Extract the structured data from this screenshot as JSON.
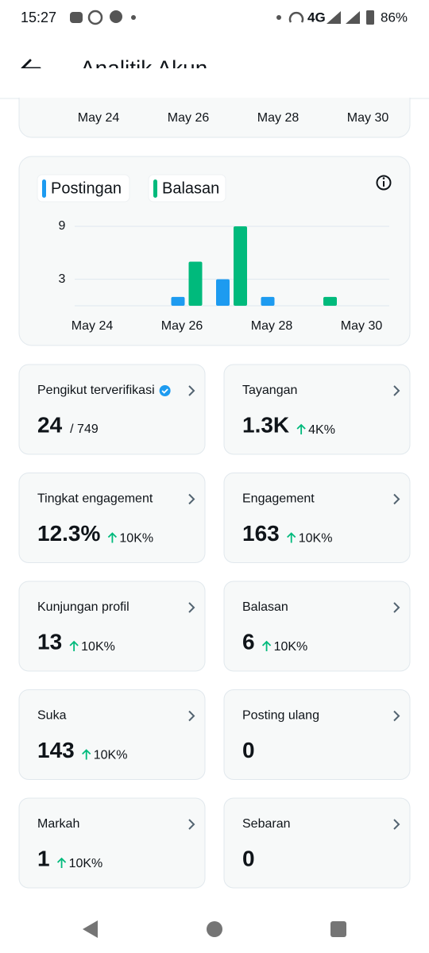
{
  "status_bar": {
    "time": "15:27",
    "network": "4G",
    "battery": "86%"
  },
  "header": {
    "title": "Analitik Akun"
  },
  "top_chart": {
    "x_labels": [
      "May 24",
      "May 26",
      "May 28",
      "May 30"
    ]
  },
  "chart": {
    "type": "bar",
    "categories": [
      "May 24",
      null,
      "May 26",
      null,
      "May 28",
      null,
      "May 30"
    ],
    "series": [
      {
        "name": "Postingan",
        "color": "#1d9bf0",
        "values": [
          0,
          0,
          1,
          3,
          1,
          0,
          0
        ]
      },
      {
        "name": "Balasan",
        "color": "#00ba7c",
        "values": [
          0,
          0,
          5,
          9,
          0,
          1,
          0
        ]
      }
    ],
    "ylim": [
      0,
      9
    ],
    "yticks": [
      3,
      9
    ],
    "grid": true
  },
  "cards": [
    {
      "label": "Pengikut terverifikasi",
      "value": "24",
      "total": "/ 749"
    },
    {
      "label": "Tayangan",
      "value": "1.3K",
      "change": "4K%"
    },
    {
      "label": "Tingkat engagement",
      "value": "12.3%",
      "change": "10K%"
    },
    {
      "label": "Engagement",
      "value": "163",
      "change": "10K%"
    },
    {
      "label": "Kunjungan profil",
      "value": "13",
      "change": "10K%"
    },
    {
      "label": "Balasan",
      "value": "6",
      "change": "10K%"
    },
    {
      "label": "Suka",
      "value": "143",
      "change": "10K%"
    },
    {
      "label": "Posting ulang",
      "value": "0"
    },
    {
      "label": "Markah",
      "value": "1",
      "change": "10K%"
    },
    {
      "label": "Sebaran",
      "value": "0"
    }
  ]
}
